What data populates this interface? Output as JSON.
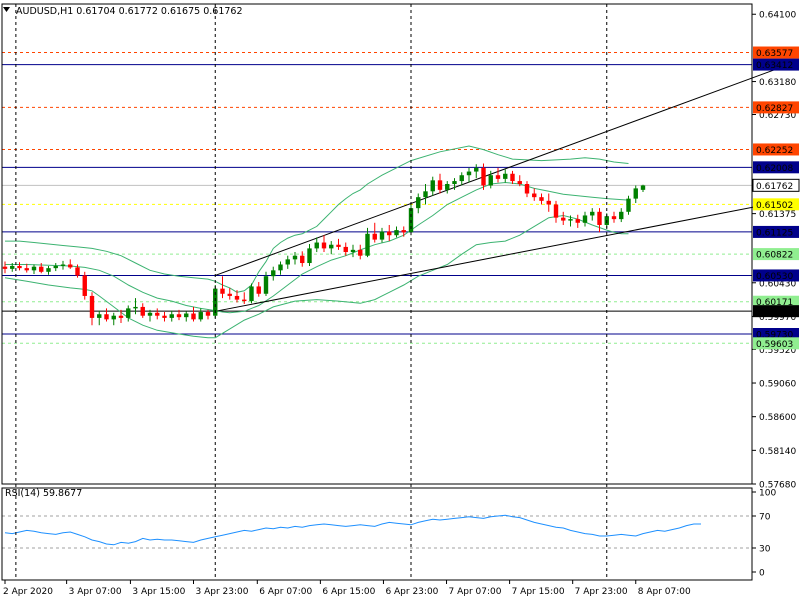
{
  "header": {
    "symbol_line": "AUDUSD,H1  0.61704 0.61772 0.61675 0.61762",
    "menu_icon": "triangle-down-icon"
  },
  "rsi": {
    "label": "RSI(14) 59.8677",
    "axis_labels": [
      "100",
      "70",
      "30",
      "0"
    ],
    "levels": [
      70,
      30
    ],
    "color": "#1e90ff"
  },
  "colors": {
    "bull": "#008000",
    "bear": "#ff0000",
    "bands": "#3cb371",
    "trendline": "#000000",
    "resistance_line": "#00008b",
    "red_dash": "#ff4500",
    "yellow_dash": "#ffff00",
    "green_dash": "#90ee90",
    "current_price_bg": "#ffffff"
  },
  "chart_data": {
    "type": "candlestick",
    "symbol": "AUDUSD",
    "timeframe": "H1",
    "ohlc_header": {
      "open": 0.61704,
      "high": 0.61772,
      "low": 0.61675,
      "close": 0.61762
    },
    "y_axis_labels": [
      "0.64100",
      "0.63180",
      "0.62730",
      "0.61375",
      "0.60430",
      "0.59970",
      "0.59520",
      "0.59060",
      "0.58600",
      "0.58140",
      "0.57680"
    ],
    "ylim": [
      0.5768,
      0.6424
    ],
    "x_axis_labels": [
      "2 Apr 2020",
      "3 Apr 07:00",
      "3 Apr 15:00",
      "3 Apr 23:00",
      "6 Apr 07:00",
      "6 Apr 15:00",
      "6 Apr 23:00",
      "7 Apr 07:00",
      "7 Apr 15:00",
      "7 Apr 23:00",
      "8 Apr 07:00"
    ],
    "price_levels": [
      {
        "label": "0.63577",
        "value": 0.63577,
        "style": "red-dash"
      },
      {
        "label": "0.63412",
        "value": 0.63412,
        "style": "blue-solid"
      },
      {
        "label": "0.62827",
        "value": 0.62827,
        "style": "red-dash"
      },
      {
        "label": "0.62252",
        "value": 0.62252,
        "style": "red-dash"
      },
      {
        "label": "0.62008",
        "value": 0.62008,
        "style": "blue-solid"
      },
      {
        "label": "0.61762",
        "value": 0.61762,
        "style": "current"
      },
      {
        "label": "0.61502",
        "value": 0.61502,
        "style": "yellow-dash"
      },
      {
        "label": "0.61125",
        "value": 0.61125,
        "style": "blue-solid"
      },
      {
        "label": "0.60822",
        "value": 0.60822,
        "style": "green-dash"
      },
      {
        "label": "0.60530",
        "value": 0.6053,
        "style": "blue-solid"
      },
      {
        "label": "0.60171",
        "value": 0.60171,
        "style": "green-dash"
      },
      {
        "label": "0.60042",
        "value": 0.60042,
        "style": "black-solid"
      },
      {
        "label": "0.59730",
        "value": 0.5973,
        "style": "blue-solid"
      },
      {
        "label": "0.59603",
        "value": 0.59603,
        "style": "green-dash"
      }
    ],
    "candles": [
      {
        "o": 0.6065,
        "h": 0.6072,
        "l": 0.6056,
        "c": 0.6062
      },
      {
        "o": 0.6062,
        "h": 0.607,
        "l": 0.6058,
        "c": 0.6066
      },
      {
        "o": 0.6066,
        "h": 0.6071,
        "l": 0.606,
        "c": 0.6063
      },
      {
        "o": 0.6063,
        "h": 0.6069,
        "l": 0.6057,
        "c": 0.606
      },
      {
        "o": 0.606,
        "h": 0.6068,
        "l": 0.6055,
        "c": 0.6065
      },
      {
        "o": 0.6065,
        "h": 0.607,
        "l": 0.6056,
        "c": 0.6058
      },
      {
        "o": 0.6058,
        "h": 0.6066,
        "l": 0.6054,
        "c": 0.6063
      },
      {
        "o": 0.6063,
        "h": 0.607,
        "l": 0.6059,
        "c": 0.6066
      },
      {
        "o": 0.6066,
        "h": 0.6073,
        "l": 0.6061,
        "c": 0.6068
      },
      {
        "o": 0.6068,
        "h": 0.6075,
        "l": 0.6062,
        "c": 0.6064
      },
      {
        "o": 0.6064,
        "h": 0.6068,
        "l": 0.605,
        "c": 0.6053
      },
      {
        "o": 0.6053,
        "h": 0.6058,
        "l": 0.602,
        "c": 0.6025
      },
      {
        "o": 0.6025,
        "h": 0.603,
        "l": 0.5985,
        "c": 0.5995
      },
      {
        "o": 0.5995,
        "h": 0.6005,
        "l": 0.5985,
        "c": 0.6
      },
      {
        "o": 0.6,
        "h": 0.6008,
        "l": 0.599,
        "c": 0.5993
      },
      {
        "o": 0.5993,
        "h": 0.6002,
        "l": 0.5985,
        "c": 0.5998
      },
      {
        "o": 0.5998,
        "h": 0.6006,
        "l": 0.5988,
        "c": 0.5995
      },
      {
        "o": 0.5995,
        "h": 0.6012,
        "l": 0.599,
        "c": 0.6008
      },
      {
        "o": 0.6008,
        "h": 0.6022,
        "l": 0.6,
        "c": 0.601
      },
      {
        "o": 0.601,
        "h": 0.6015,
        "l": 0.5995,
        "c": 0.5998
      },
      {
        "o": 0.5998,
        "h": 0.6006,
        "l": 0.599,
        "c": 0.6002
      },
      {
        "o": 0.6002,
        "h": 0.6008,
        "l": 0.5993,
        "c": 0.5998
      },
      {
        "o": 0.5998,
        "h": 0.6003,
        "l": 0.599,
        "c": 0.5995
      },
      {
        "o": 0.5995,
        "h": 0.6005,
        "l": 0.599,
        "c": 0.6
      },
      {
        "o": 0.6,
        "h": 0.6006,
        "l": 0.5992,
        "c": 0.5996
      },
      {
        "o": 0.5996,
        "h": 0.6004,
        "l": 0.599,
        "c": 0.6001
      },
      {
        "o": 0.6001,
        "h": 0.601,
        "l": 0.599,
        "c": 0.5993
      },
      {
        "o": 0.5993,
        "h": 0.6008,
        "l": 0.599,
        "c": 0.6003
      },
      {
        "o": 0.6003,
        "h": 0.6006,
        "l": 0.5993,
        "c": 0.5998
      },
      {
        "o": 0.5998,
        "h": 0.604,
        "l": 0.5995,
        "c": 0.6035
      },
      {
        "o": 0.6035,
        "h": 0.6052,
        "l": 0.6022,
        "c": 0.6028
      },
      {
        "o": 0.6028,
        "h": 0.6036,
        "l": 0.602,
        "c": 0.6025
      },
      {
        "o": 0.6025,
        "h": 0.6033,
        "l": 0.6016,
        "c": 0.602
      },
      {
        "o": 0.602,
        "h": 0.603,
        "l": 0.6014,
        "c": 0.6018
      },
      {
        "o": 0.6018,
        "h": 0.6042,
        "l": 0.6015,
        "c": 0.6038
      },
      {
        "o": 0.6038,
        "h": 0.6044,
        "l": 0.6024,
        "c": 0.6028
      },
      {
        "o": 0.6028,
        "h": 0.6058,
        "l": 0.6025,
        "c": 0.6052
      },
      {
        "o": 0.6052,
        "h": 0.6065,
        "l": 0.6046,
        "c": 0.606
      },
      {
        "o": 0.606,
        "h": 0.6072,
        "l": 0.6054,
        "c": 0.6068
      },
      {
        "o": 0.6068,
        "h": 0.608,
        "l": 0.6062,
        "c": 0.6075
      },
      {
        "o": 0.6075,
        "h": 0.6085,
        "l": 0.6068,
        "c": 0.608
      },
      {
        "o": 0.608,
        "h": 0.6086,
        "l": 0.6065,
        "c": 0.607
      },
      {
        "o": 0.607,
        "h": 0.6096,
        "l": 0.6066,
        "c": 0.609
      },
      {
        "o": 0.609,
        "h": 0.6105,
        "l": 0.6085,
        "c": 0.6098
      },
      {
        "o": 0.6098,
        "h": 0.6108,
        "l": 0.6085,
        "c": 0.609
      },
      {
        "o": 0.609,
        "h": 0.61,
        "l": 0.6082,
        "c": 0.6095
      },
      {
        "o": 0.6095,
        "h": 0.6103,
        "l": 0.6088,
        "c": 0.6092
      },
      {
        "o": 0.6092,
        "h": 0.6098,
        "l": 0.608,
        "c": 0.6085
      },
      {
        "o": 0.6085,
        "h": 0.6095,
        "l": 0.6078,
        "c": 0.6088
      },
      {
        "o": 0.6088,
        "h": 0.6095,
        "l": 0.6075,
        "c": 0.608
      },
      {
        "o": 0.608,
        "h": 0.6118,
        "l": 0.6078,
        "c": 0.611
      },
      {
        "o": 0.611,
        "h": 0.6125,
        "l": 0.6098,
        "c": 0.6102
      },
      {
        "o": 0.6102,
        "h": 0.6118,
        "l": 0.6098,
        "c": 0.6113
      },
      {
        "o": 0.6113,
        "h": 0.6122,
        "l": 0.61,
        "c": 0.6108
      },
      {
        "o": 0.6108,
        "h": 0.612,
        "l": 0.6105,
        "c": 0.6115
      },
      {
        "o": 0.6115,
        "h": 0.612,
        "l": 0.6106,
        "c": 0.6112
      },
      {
        "o": 0.6112,
        "h": 0.615,
        "l": 0.6108,
        "c": 0.6145
      },
      {
        "o": 0.6145,
        "h": 0.6165,
        "l": 0.6138,
        "c": 0.616
      },
      {
        "o": 0.616,
        "h": 0.6178,
        "l": 0.615,
        "c": 0.6168
      },
      {
        "o": 0.6168,
        "h": 0.6188,
        "l": 0.6162,
        "c": 0.6183
      },
      {
        "o": 0.6183,
        "h": 0.6192,
        "l": 0.6165,
        "c": 0.617
      },
      {
        "o": 0.617,
        "h": 0.6182,
        "l": 0.6165,
        "c": 0.6178
      },
      {
        "o": 0.6178,
        "h": 0.6186,
        "l": 0.617,
        "c": 0.6182
      },
      {
        "o": 0.6182,
        "h": 0.6194,
        "l": 0.6176,
        "c": 0.619
      },
      {
        "o": 0.619,
        "h": 0.62,
        "l": 0.618,
        "c": 0.6195
      },
      {
        "o": 0.6195,
        "h": 0.6205,
        "l": 0.6186,
        "c": 0.62
      },
      {
        "o": 0.62,
        "h": 0.6206,
        "l": 0.617,
        "c": 0.6176
      },
      {
        "o": 0.6176,
        "h": 0.6196,
        "l": 0.6172,
        "c": 0.619
      },
      {
        "o": 0.619,
        "h": 0.62,
        "l": 0.618,
        "c": 0.6185
      },
      {
        "o": 0.6185,
        "h": 0.6198,
        "l": 0.618,
        "c": 0.6192
      },
      {
        "o": 0.6192,
        "h": 0.6196,
        "l": 0.6178,
        "c": 0.6182
      },
      {
        "o": 0.6182,
        "h": 0.619,
        "l": 0.6175,
        "c": 0.6178
      },
      {
        "o": 0.6178,
        "h": 0.6182,
        "l": 0.616,
        "c": 0.6165
      },
      {
        "o": 0.6165,
        "h": 0.6172,
        "l": 0.6155,
        "c": 0.616
      },
      {
        "o": 0.616,
        "h": 0.6165,
        "l": 0.615,
        "c": 0.6155
      },
      {
        "o": 0.6155,
        "h": 0.6165,
        "l": 0.614,
        "c": 0.615
      },
      {
        "o": 0.615,
        "h": 0.6155,
        "l": 0.6125,
        "c": 0.6132
      },
      {
        "o": 0.6132,
        "h": 0.614,
        "l": 0.6122,
        "c": 0.6128
      },
      {
        "o": 0.6128,
        "h": 0.6135,
        "l": 0.612,
        "c": 0.613
      },
      {
        "o": 0.613,
        "h": 0.6136,
        "l": 0.6118,
        "c": 0.6125
      },
      {
        "o": 0.6125,
        "h": 0.614,
        "l": 0.612,
        "c": 0.6135
      },
      {
        "o": 0.6135,
        "h": 0.6145,
        "l": 0.6128,
        "c": 0.614
      },
      {
        "o": 0.614,
        "h": 0.6145,
        "l": 0.6112,
        "c": 0.6122
      },
      {
        "o": 0.6122,
        "h": 0.6138,
        "l": 0.6118,
        "c": 0.6134
      },
      {
        "o": 0.6134,
        "h": 0.614,
        "l": 0.6125,
        "c": 0.613
      },
      {
        "o": 0.613,
        "h": 0.6145,
        "l": 0.6126,
        "c": 0.614
      },
      {
        "o": 0.614,
        "h": 0.6162,
        "l": 0.6136,
        "c": 0.6158
      },
      {
        "o": 0.6158,
        "h": 0.6176,
        "l": 0.6152,
        "c": 0.6172
      },
      {
        "o": 0.617,
        "h": 0.6177,
        "l": 0.6167,
        "c": 0.6176
      }
    ],
    "bollinger_upper": [
      0.61,
      0.61,
      0.6098,
      0.6096,
      0.6094,
      0.6092,
      0.609,
      0.6086,
      0.608,
      0.607,
      0.606,
      0.6055,
      0.6052,
      0.605,
      0.6048,
      0.6045,
      0.604,
      0.6036,
      0.603,
      0.6032,
      0.604,
      0.6058,
      0.6072,
      0.609,
      0.6098,
      0.6104,
      0.6108,
      0.611,
      0.6115,
      0.612,
      0.613,
      0.614,
      0.615,
      0.6158,
      0.6165,
      0.617,
      0.6178,
      0.619,
      0.621,
      0.6222,
      0.623,
      0.6225,
      0.6218,
      0.6212,
      0.621,
      0.6212,
      0.6214,
      0.6212,
      0.6208,
      0.6206
    ],
    "bollinger_upper_x": [
      0,
      2,
      4,
      6,
      8,
      10,
      12,
      14,
      16,
      18,
      20,
      22,
      24,
      26,
      28,
      29,
      30,
      31,
      32,
      33,
      34,
      35,
      36,
      37,
      38,
      39,
      40,
      41,
      42,
      43,
      44,
      45,
      46,
      47,
      48,
      49,
      50,
      52,
      56,
      60,
      64,
      66,
      68,
      70,
      74,
      78,
      80,
      82,
      84,
      86
    ],
    "bollinger_middle": [
      0.6068,
      0.6068,
      0.6067,
      0.6066,
      0.6064,
      0.606,
      0.6052,
      0.604,
      0.603,
      0.6022,
      0.6018,
      0.6012,
      0.6008,
      0.6005,
      0.6003,
      0.6002,
      0.6004,
      0.6012,
      0.6025,
      0.604,
      0.6055,
      0.6065,
      0.6074,
      0.608,
      0.6088,
      0.6095,
      0.61,
      0.6108,
      0.6122,
      0.6135,
      0.615,
      0.616,
      0.617,
      0.6178,
      0.618,
      0.6178,
      0.6172,
      0.6168,
      0.6164,
      0.6162,
      0.616,
      0.6158,
      0.6156
    ],
    "bollinger_middle_x": [
      0,
      3,
      6,
      9,
      11,
      13,
      15,
      17,
      19,
      21,
      23,
      25,
      27,
      29,
      30,
      31,
      33,
      35,
      37,
      39,
      41,
      43,
      45,
      47,
      49,
      51,
      53,
      55,
      57,
      59,
      61,
      63,
      65,
      67,
      69,
      71,
      73,
      75,
      77,
      79,
      81,
      83,
      86
    ],
    "bollinger_lower": [
      0.605,
      0.6045,
      0.604,
      0.6036,
      0.6034,
      0.6032,
      0.6025,
      0.601,
      0.5995,
      0.5985,
      0.5978,
      0.5973,
      0.597,
      0.5968,
      0.5968,
      0.598,
      0.5992,
      0.6,
      0.601,
      0.6018,
      0.602,
      0.6018,
      0.6015,
      0.602,
      0.603,
      0.604,
      0.6052,
      0.606,
      0.6068,
      0.6082,
      0.6095,
      0.6098,
      0.61,
      0.6108,
      0.612,
      0.6132,
      0.6135,
      0.613,
      0.6122,
      0.6115,
      0.6112,
      0.611,
      0.611
    ],
    "bollinger_lower_x": [
      0,
      3,
      6,
      9,
      11,
      12,
      13,
      15,
      17,
      19,
      21,
      24,
      26,
      28,
      29,
      31,
      33,
      35,
      37,
      40,
      43,
      46,
      49,
      51,
      53,
      55,
      57,
      59,
      61,
      63,
      65,
      67,
      69,
      71,
      73,
      75,
      77,
      79,
      81,
      83,
      84,
      85,
      86
    ],
    "trendlines": [
      {
        "x": [
          29,
          107.2
        ],
        "y": [
          0.6053,
          0.6338
        ]
      },
      {
        "x": [
          29,
          107.2
        ],
        "y": [
          0.6004,
          0.6154
        ]
      }
    ],
    "rsi_values": [
      49,
      48,
      50,
      52,
      51,
      49,
      48,
      47,
      49,
      50,
      47,
      44,
      40,
      38,
      35,
      34,
      37,
      36,
      38,
      42,
      40,
      41,
      40,
      40,
      39,
      38,
      37,
      40,
      42,
      44,
      46,
      48,
      50,
      52,
      51,
      53,
      55,
      54,
      56,
      55,
      57,
      56,
      58,
      59,
      60,
      59,
      58,
      57,
      58,
      59,
      58,
      57,
      60,
      62,
      61,
      60,
      59,
      62,
      64,
      66,
      65,
      66,
      67,
      68,
      69,
      68,
      67,
      69,
      70,
      71,
      69,
      68,
      65,
      62,
      60,
      58,
      56,
      55,
      52,
      50,
      48,
      47,
      45,
      45,
      46,
      47,
      46,
      45,
      48,
      50,
      52,
      51,
      53,
      55,
      58,
      60,
      60
    ],
    "rsi_x": [
      0,
      1,
      2,
      3,
      4,
      5,
      6,
      7,
      8,
      9,
      10,
      11,
      12,
      13,
      14,
      15,
      16,
      17,
      18,
      19,
      20,
      21,
      22,
      23,
      24,
      25,
      26,
      27,
      28,
      29,
      30,
      31,
      32,
      33,
      34,
      35,
      36,
      37,
      38,
      39,
      40,
      41,
      42,
      43,
      44,
      45,
      46,
      47,
      48,
      49,
      50,
      51,
      52,
      53,
      54,
      55,
      56,
      57,
      58,
      59,
      60,
      61,
      62,
      63,
      64,
      65,
      66,
      67,
      68,
      69,
      70,
      71,
      72,
      73,
      74,
      75,
      76,
      77,
      78,
      79,
      80,
      81,
      82,
      83,
      84,
      85,
      86,
      87,
      88,
      89,
      90,
      91,
      92,
      93,
      94,
      95,
      96
    ],
    "period_separators": [
      {
        "after_label": "2 Apr 2020",
        "x": 1.5
      },
      {
        "after_label": "3 Apr 23:00",
        "x": 29
      },
      {
        "after_label": "6 Apr 23:00",
        "x": 56
      },
      {
        "after_label": "7 Apr 23:00",
        "x": 83
      }
    ]
  }
}
